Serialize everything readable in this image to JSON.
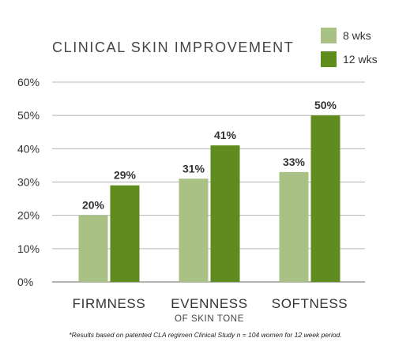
{
  "chart_data": {
    "type": "bar",
    "title": "CLINICAL SKIN IMPROVEMENT",
    "categories": [
      {
        "main": "FIRMNESS",
        "sub": ""
      },
      {
        "main": "EVENNESS",
        "sub": "OF SKIN TONE"
      },
      {
        "main": "SOFTNESS",
        "sub": ""
      }
    ],
    "series": [
      {
        "name": "8 wks",
        "color": "#a9c184",
        "values": [
          20,
          31,
          33
        ],
        "labels": [
          "20%",
          "31%",
          "33%"
        ]
      },
      {
        "name": "12 wks",
        "color": "#5f8b1f",
        "values": [
          29,
          41,
          50
        ],
        "labels": [
          "29%",
          "41%",
          "50%"
        ]
      }
    ],
    "ylim": [
      0,
      60
    ],
    "yticks": [
      0,
      10,
      20,
      30,
      40,
      50,
      60
    ],
    "ytick_labels": [
      "0%",
      "10%",
      "20%",
      "30%",
      "40%",
      "50%",
      "60%"
    ],
    "grid": true,
    "legend_position": "top-right",
    "xlabel": "",
    "ylabel": "",
    "footnote": "*Results based on patented CLA regimen Clinical Study n = 104 women for 12 week period."
  }
}
